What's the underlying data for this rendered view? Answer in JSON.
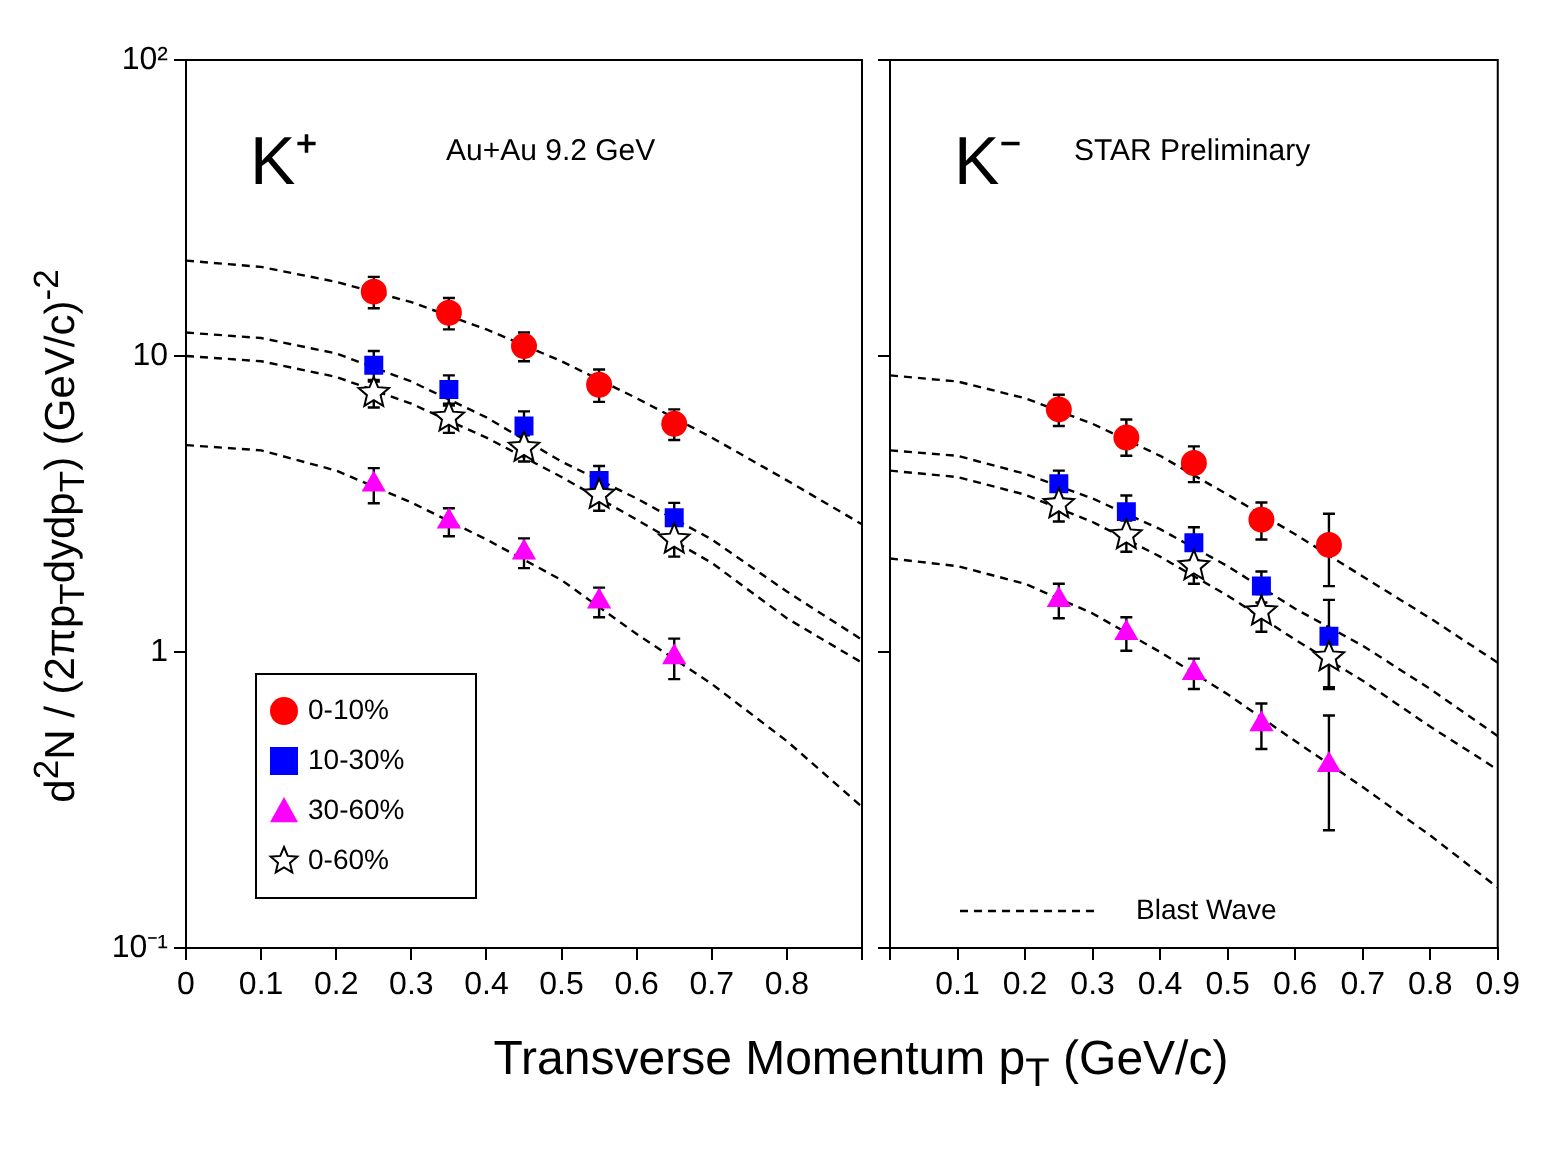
{
  "chart_data": [
    {
      "type": "scatter",
      "ylabel": "d$^{2}$N / (2πp$_{T}$dydp$_{T}$) (GeV/c)$^{-2}$",
      "xlabel": "Transverse Momentum p$_{T}$ (GeV/c)",
      "annotations": [
        "K⁺",
        "Au+Au 9.2 GeV"
      ],
      "x": [
        0.25,
        0.35,
        0.45,
        0.55,
        0.65
      ],
      "series": [
        {
          "name": "0-10%",
          "color": "#ff0000",
          "marker": "circle",
          "values": [
            16.5,
            14,
            10.8,
            8.0,
            5.9
          ],
          "errors": [
            2,
            1.7,
            1.2,
            1.0,
            0.7
          ]
        },
        {
          "name": "10-30%",
          "color": "#0000ff",
          "marker": "square",
          "values": [
            9.3,
            7.7,
            5.8,
            3.8,
            2.84
          ],
          "errors": [
            1.1,
            0.9,
            0.7,
            0.45,
            0.35
          ]
        },
        {
          "name": "30-60%",
          "color": "#ff00ff",
          "marker": "triangle",
          "values": [
            3.68,
            2.76,
            2.17,
            1.48,
            0.96
          ],
          "errors": [
            0.5,
            0.3,
            0.25,
            0.17,
            0.15
          ]
        },
        {
          "name": "0-60%",
          "color": "#000000",
          "marker": "star",
          "values": [
            7.5,
            6.2,
            4.9,
            3.4,
            2.4
          ],
          "errors": [
            0.8,
            0.7,
            0.5,
            0.4,
            0.3
          ]
        },
        {
          "type": "line",
          "color": "#000000",
          "marker": "none",
          "line_style": "dashed",
          "x": [
            0,
            0.1,
            0.2,
            0.3,
            0.4,
            0.5,
            0.6,
            0.7,
            0.8,
            0.9
          ],
          "values": [
            21,
            20,
            17.8,
            15.2,
            12.3,
            9.6,
            7.2,
            5.3,
            3.8,
            2.7
          ]
        },
        {
          "type": "line",
          "color": "#000000",
          "marker": "none",
          "line_style": "dashed",
          "x": [
            0,
            0.1,
            0.2,
            0.3,
            0.4,
            0.5,
            0.6,
            0.7,
            0.8,
            0.9
          ],
          "values": [
            12,
            11.5,
            10.2,
            8.2,
            6.2,
            4.4,
            3.3,
            2.4,
            1.6,
            1.1
          ]
        },
        {
          "type": "line",
          "color": "#000000",
          "marker": "none",
          "line_style": "dashed",
          "x": [
            0,
            0.1,
            0.2,
            0.3,
            0.4,
            0.5,
            0.6,
            0.7,
            0.8,
            0.9
          ],
          "values": [
            10,
            9.6,
            8.5,
            6.9,
            5.3,
            3.9,
            2.8,
            2.0,
            1.3,
            0.92
          ]
        },
        {
          "type": "line",
          "color": "#000000",
          "marker": "none",
          "line_style": "dashed",
          "x": [
            0,
            0.1,
            0.2,
            0.3,
            0.4,
            0.5,
            0.6,
            0.7,
            0.8,
            0.9
          ],
          "values": [
            5,
            4.8,
            4.1,
            3.2,
            2.4,
            1.75,
            1.15,
            0.78,
            0.5,
            0.3
          ]
        }
      ],
      "xlim": [
        0,
        0.9
      ],
      "xticks": [
        0,
        0.1,
        0.2,
        0.3,
        0.4,
        0.5,
        0.6,
        0.7,
        0.8,
        {
          "value": 0.9,
          "label": null
        }
      ],
      "ylim": [
        0.1,
        100
      ],
      "yticks": [
        {
          "value": 0.1,
          "label": "10⁻¹"
        },
        1,
        10,
        {
          "value": 100,
          "label": "10²"
        }
      ],
      "log": "y",
      "grid": false,
      "legend": "bottom left"
    },
    {
      "type": "scatter",
      "annotations": [
        "K⁻",
        "STAR Preliminary"
      ],
      "x": [
        0.25,
        0.35,
        0.45,
        0.55,
        0.65
      ],
      "series": [
        {
          "color": "#ff0000",
          "marker": "circle",
          "values": [
            6.6,
            5.3,
            4.35,
            2.8,
            2.3
          ],
          "errors": [
            0.8,
            [
              4.6,
              6.1
            ],
            0.6,
            0.4,
            [
              1.67,
              2.93
            ]
          ]
        },
        {
          "color": "#0000ff",
          "marker": "square",
          "values": [
            3.7,
            2.98,
            2.34,
            1.67,
            1.13
          ],
          "errors": [
            0.4,
            0.4,
            0.3,
            0.2,
            [
              0.75,
              1.5
            ]
          ]
        },
        {
          "color": "#ff00ff",
          "marker": "triangle",
          "values": [
            1.5,
            1.16,
            0.85,
            0.57,
            0.415
          ],
          "errors": [
            0.2,
            0.15,
            0.1,
            0.1,
            [
              0.25,
              0.61
            ]
          ]
        },
        {
          "color": "#000000",
          "marker": "star",
          "values": [
            3.16,
            2.48,
            1.95,
            1.37,
            0.96
          ],
          "errors": [
            0.4,
            0.3,
            0.25,
            0.2,
            0.2
          ]
        },
        {
          "name": "Blast Wave",
          "type": "line",
          "color": "#000000",
          "marker": "none",
          "line_style": "dashed",
          "x": [
            0,
            0.1,
            0.2,
            0.3,
            0.4,
            0.5,
            0.6,
            0.7,
            0.8,
            0.9
          ],
          "values": [
            8.6,
            8.2,
            7.2,
            5.9,
            4.6,
            3.4,
            2.5,
            1.8,
            1.3,
            0.92
          ]
        },
        {
          "type": "line",
          "color": "#000000",
          "marker": "none",
          "line_style": "dashed",
          "x": [
            0,
            0.1,
            0.2,
            0.3,
            0.4,
            0.5,
            0.6,
            0.7,
            0.8,
            0.9
          ],
          "values": [
            4.8,
            4.6,
            4.0,
            3.3,
            2.6,
            1.95,
            1.4,
            1.05,
            0.75,
            0.52
          ]
        },
        {
          "type": "line",
          "color": "#000000",
          "marker": "none",
          "line_style": "dashed",
          "x": [
            0,
            0.1,
            0.2,
            0.3,
            0.4,
            0.5,
            0.6,
            0.7,
            0.8,
            0.9
          ],
          "values": [
            4.1,
            3.9,
            3.4,
            2.75,
            2.1,
            1.55,
            1.1,
            0.8,
            0.56,
            0.4
          ]
        },
        {
          "type": "line",
          "color": "#000000",
          "marker": "none",
          "line_style": "dashed",
          "x": [
            0,
            0.1,
            0.2,
            0.3,
            0.4,
            0.5,
            0.6,
            0.7,
            0.8,
            0.9
          ],
          "values": [
            2.07,
            1.95,
            1.7,
            1.35,
            1.0,
            0.72,
            0.5,
            0.35,
            0.24,
            0.16
          ]
        }
      ],
      "xlim": [
        0,
        0.9
      ],
      "xticks": [
        {
          "value": 0,
          "label": null
        },
        0.1,
        0.2,
        0.3,
        0.4,
        0.5,
        0.6,
        0.7,
        0.8,
        0.9
      ],
      "ylim": [
        0.1,
        100
      ],
      "yticks": [
        {
          "value": 0.1,
          "label": null
        },
        {
          "value": 1,
          "label": null
        },
        {
          "value": 10,
          "label": null
        },
        {
          "value": 100,
          "label": null
        }
      ],
      "log": "y",
      "grid": false,
      "legend": "bottom left",
      "tick_labels": "x"
    }
  ]
}
